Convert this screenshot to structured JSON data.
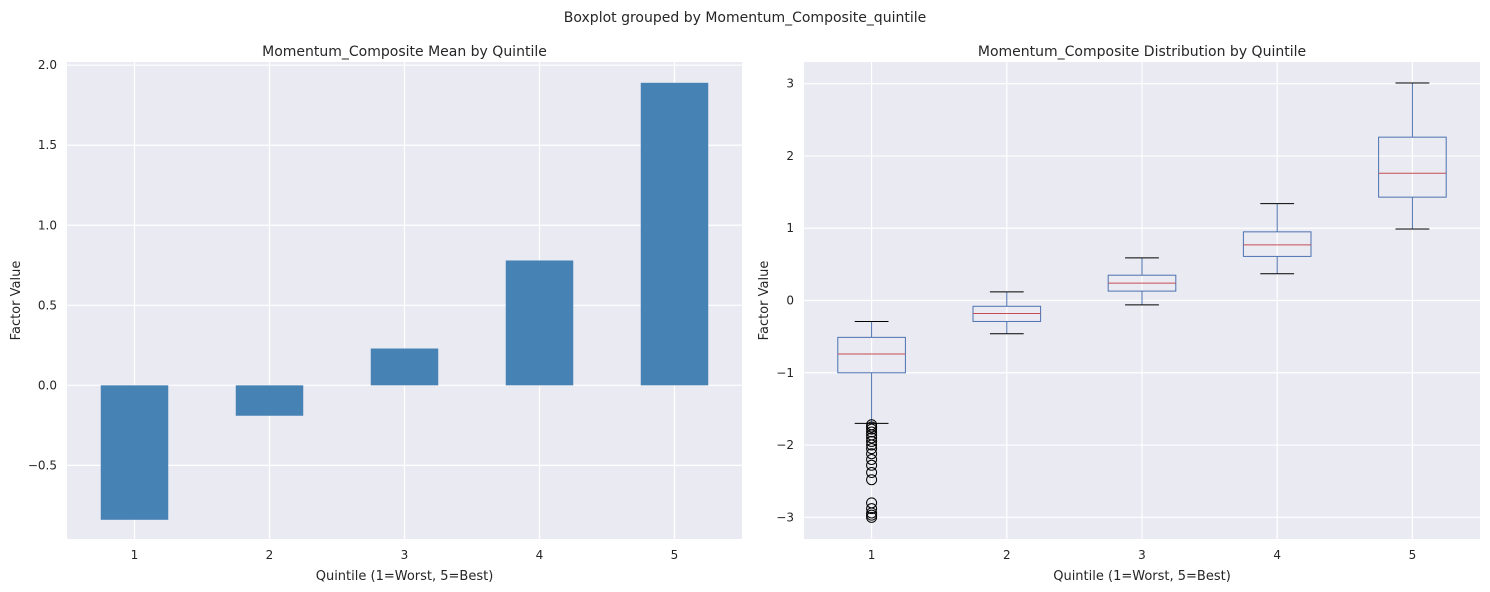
{
  "figure": {
    "suptitle": "Boxplot grouped by Momentum_Composite_quintile"
  },
  "colors": {
    "axes_bg": "#eaeaf2",
    "grid": "#ffffff",
    "bar": "#4682b4",
    "box": "#4c72b0",
    "median": "#c44e52",
    "whisker_cap": "#000000",
    "flier": "#000000"
  },
  "chart_data": [
    {
      "type": "bar",
      "title": "Momentum_Composite Mean by Quintile",
      "xlabel": "Quintile (1=Worst, 5=Best)",
      "ylabel": "Factor Value",
      "categories": [
        "1",
        "2",
        "3",
        "4",
        "5"
      ],
      "values": [
        -0.84,
        -0.19,
        0.23,
        0.78,
        1.89
      ],
      "ylim": [
        -0.96,
        2.02
      ],
      "yticks": [
        -0.5,
        0.0,
        0.5,
        1.0,
        1.5,
        2.0
      ],
      "ytick_labels": [
        "−0.5",
        "0.0",
        "0.5",
        "1.0",
        "1.5",
        "2.0"
      ],
      "grid": true
    },
    {
      "type": "box",
      "title": "Momentum_Composite Distribution by Quintile",
      "xlabel": "Quintile (1=Worst, 5=Best)",
      "ylabel": "Factor Value",
      "categories": [
        "1",
        "2",
        "3",
        "4",
        "5"
      ],
      "ylim": [
        -3.3,
        3.3
      ],
      "yticks": [
        -3,
        -2,
        -1,
        0,
        1,
        2,
        3
      ],
      "ytick_labels": [
        "−3",
        "−2",
        "−1",
        "0",
        "1",
        "2",
        "3"
      ],
      "grid": true,
      "boxes": [
        {
          "whislo": -1.7,
          "q1": -1.0,
          "med": -0.74,
          "q3": -0.51,
          "whishi": -0.29,
          "fliers": [
            -1.72,
            -1.75,
            -1.78,
            -1.82,
            -1.86,
            -1.9,
            -1.95,
            -2.0,
            -2.05,
            -2.12,
            -2.2,
            -2.28,
            -2.38,
            -2.48,
            -2.8,
            -2.88,
            -2.94,
            -2.97,
            -3.0
          ]
        },
        {
          "whislo": -0.46,
          "q1": -0.29,
          "med": -0.18,
          "q3": -0.08,
          "whishi": 0.12,
          "fliers": []
        },
        {
          "whislo": -0.06,
          "q1": 0.13,
          "med": 0.24,
          "q3": 0.35,
          "whishi": 0.59,
          "fliers": []
        },
        {
          "whislo": 0.37,
          "q1": 0.61,
          "med": 0.77,
          "q3": 0.95,
          "whishi": 1.34,
          "fliers": []
        },
        {
          "whislo": 0.99,
          "q1": 1.43,
          "med": 1.76,
          "q3": 2.26,
          "whishi": 3.01,
          "fliers": []
        }
      ]
    }
  ]
}
